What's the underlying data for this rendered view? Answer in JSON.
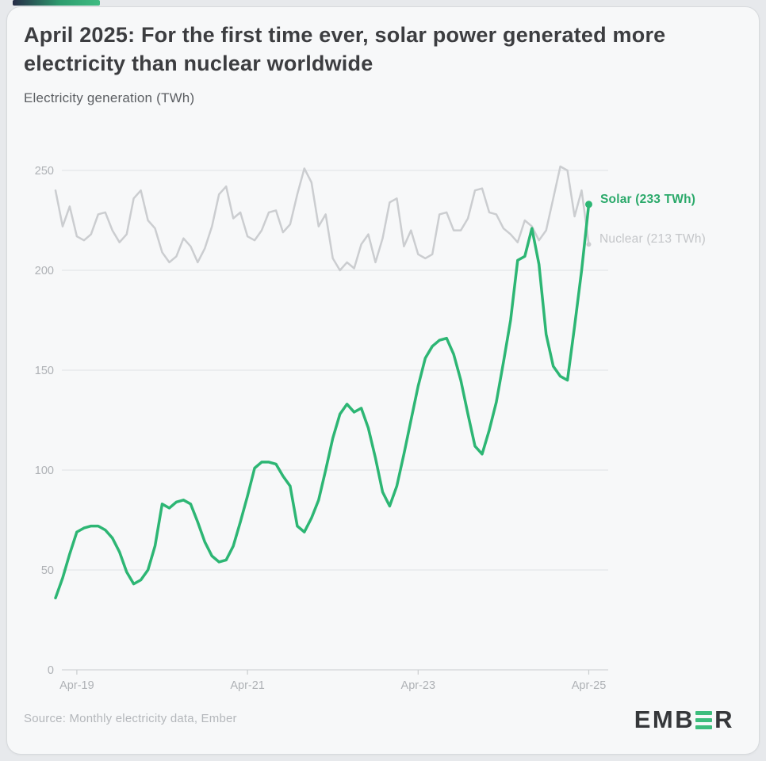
{
  "header": {
    "title": "April 2025: For the first time ever, solar power generated more electricity than nuclear worldwide",
    "subtitle": "Electricity generation (TWh)"
  },
  "footer": {
    "source": "Source: Monthly electricity data, Ember",
    "logo": {
      "text_left": "EMB",
      "text_right": "R",
      "full_name": "EMBER"
    }
  },
  "colors": {
    "accent_gradient_start": "#272c47",
    "accent_gradient_mid": "#2e9d6f",
    "accent_gradient_end": "#3fbc82",
    "solar": "#2db674",
    "solar_label": "#2aa96a",
    "nuclear": "#cbcdd0",
    "nuclear_label": "#c4c6c9",
    "gridline": "#e4e6e9",
    "axis_line": "#d2d5d8",
    "tick_text": "#aeb1b5"
  },
  "chart_data": {
    "type": "line",
    "title": "April 2025: For the first time ever, solar power generated more electricity than nuclear worldwide",
    "ylabel": "Electricity generation (TWh)",
    "ylim": [
      0,
      250
    ],
    "y_ticks": [
      0,
      50,
      100,
      150,
      200,
      250
    ],
    "grid": "horizontal",
    "legend_position": "line-end-labels",
    "x_start_month": "2019-01",
    "x_end_month": "2025-04",
    "x_tick_labels": [
      "Apr-19",
      "Apr-21",
      "Apr-23",
      "Apr-25"
    ],
    "x_tick_month_indices": [
      3,
      27,
      51,
      75
    ],
    "series": [
      {
        "name": "Solar",
        "end_label": "Solar (233 TWh)",
        "end_value": 233,
        "color": "#2db674",
        "label_color": "#2aa96a",
        "line_width": 3.5,
        "marker_radius": 4.5,
        "values": [
          36,
          46,
          58,
          69,
          71,
          72,
          72,
          70,
          66,
          59,
          49,
          43,
          45,
          50,
          62,
          83,
          81,
          84,
          85,
          83,
          74,
          64,
          57,
          54,
          55,
          62,
          74,
          87,
          101,
          104,
          104,
          103,
          97,
          92,
          72,
          69,
          76,
          85,
          100,
          116,
          128,
          133,
          129,
          131,
          121,
          106,
          89,
          82,
          92,
          108,
          125,
          142,
          156,
          162,
          165,
          166,
          158,
          145,
          128,
          112,
          108,
          120,
          134,
          154,
          175,
          205,
          207,
          221,
          203,
          168,
          152,
          147,
          145,
          172,
          200,
          233
        ]
      },
      {
        "name": "Nuclear",
        "end_label": "Nuclear (213 TWh)",
        "end_value": 213,
        "color": "#cbcdd0",
        "label_color": "#c4c6c9",
        "line_width": 2.5,
        "marker_radius": 3,
        "values": [
          240,
          222,
          232,
          217,
          215,
          218,
          228,
          229,
          220,
          214,
          218,
          236,
          240,
          225,
          221,
          209,
          204,
          207,
          216,
          212,
          204,
          211,
          222,
          238,
          242,
          226,
          229,
          217,
          215,
          220,
          229,
          230,
          219,
          223,
          238,
          251,
          244,
          222,
          228,
          206,
          200,
          204,
          201,
          213,
          218,
          204,
          216,
          234,
          236,
          212,
          220,
          208,
          206,
          208,
          228,
          229,
          220,
          220,
          226,
          240,
          241,
          229,
          228,
          221,
          218,
          214,
          225,
          222,
          215,
          220,
          236,
          252,
          250,
          227,
          240,
          213
        ]
      }
    ]
  }
}
